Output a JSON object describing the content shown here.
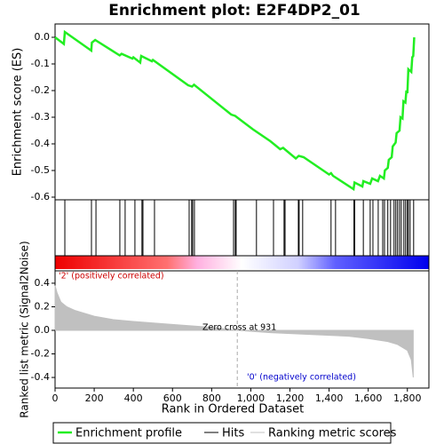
{
  "chart_data": [
    {
      "type": "line",
      "title": "Enrichment plot: E2F4DP2_01",
      "ylabel": "Enrichment score (ES)",
      "xlim": [
        0,
        1910
      ],
      "ylim": [
        -0.61,
        0.05
      ],
      "yticks": [
        {
          "value": 0,
          "label": "0.0"
        },
        -0.1,
        -0.2,
        -0.3,
        -0.4,
        -0.5,
        -0.6
      ],
      "series": [
        {
          "name": "Enrichment profile",
          "color": "#22ee22",
          "x": [
            0,
            45,
            50,
            185,
            188,
            205,
            330,
            340,
            395,
            400,
            435,
            440,
            495,
            500,
            680,
            700,
            710,
            900,
            920,
            1010,
            1100,
            1150,
            1165,
            1230,
            1245,
            1270,
            1390,
            1400,
            1410,
            1420,
            1525,
            1530,
            1570,
            1575,
            1610,
            1620,
            1650,
            1660,
            1680,
            1685,
            1700,
            1705,
            1720,
            1725,
            1740,
            1745,
            1760,
            1765,
            1775,
            1780,
            1790,
            1795,
            1800,
            1805,
            1820,
            1825,
            1830,
            1835
          ],
          "values": [
            0,
            -0.025,
            0.02,
            -0.05,
            -0.02,
            -0.01,
            -0.068,
            -0.062,
            -0.08,
            -0.075,
            -0.095,
            -0.07,
            -0.09,
            -0.085,
            -0.18,
            -0.185,
            -0.178,
            -0.29,
            -0.295,
            -0.345,
            -0.39,
            -0.42,
            -0.415,
            -0.455,
            -0.445,
            -0.45,
            -0.51,
            -0.515,
            -0.51,
            -0.52,
            -0.57,
            -0.545,
            -0.56,
            -0.54,
            -0.55,
            -0.53,
            -0.54,
            -0.52,
            -0.53,
            -0.5,
            -0.49,
            -0.46,
            -0.45,
            -0.41,
            -0.395,
            -0.36,
            -0.35,
            -0.3,
            -0.305,
            -0.24,
            -0.245,
            -0.2,
            -0.21,
            -0.12,
            -0.13,
            -0.075,
            -0.07,
            0.0
          ]
        }
      ]
    },
    {
      "type": "hits",
      "xlim": [
        0,
        1910
      ],
      "series": [
        {
          "name": "Hits",
          "color": "#000000",
          "x": [
            50,
            186,
            209,
            331,
            358,
            408,
            444,
            449,
            508,
            685,
            698,
            703,
            712,
            912,
            921,
            925,
            1029,
            1116,
            1170,
            1175,
            1243,
            1247,
            1265,
            1410,
            1433,
            1527,
            1531,
            1575,
            1610,
            1624,
            1651,
            1674,
            1683,
            1700,
            1714,
            1732,
            1741,
            1750,
            1760,
            1769,
            1782,
            1791,
            1800,
            1805,
            1814,
            1832
          ]
        }
      ]
    },
    {
      "type": "area",
      "xlabel": "Rank in Ordered Dataset",
      "ylabel": "Ranked list metric (Signal2Noise)",
      "xlim": [
        0,
        1910
      ],
      "ylim": [
        -0.49,
        0.505
      ],
      "xticks": [
        0,
        200,
        400,
        600,
        800,
        {
          "value": 1000,
          "label": "1,000"
        },
        {
          "value": 1200,
          "label": "1,200"
        },
        {
          "value": 1400,
          "label": "1,400"
        },
        {
          "value": 1600,
          "label": "1,600"
        },
        {
          "value": 1800,
          "label": "1,800"
        }
      ],
      "yticks": [
        0.4,
        0.2,
        {
          "value": 0,
          "label": "0.0"
        },
        -0.2,
        -0.4
      ],
      "annotations": [
        {
          "text": "'2' (positively correlated)",
          "color": "#cc0000"
        },
        {
          "text": "Zero cross at 931",
          "color": "#000000"
        },
        {
          "text": "'0' (negatively correlated)",
          "color": "#0000cc"
        }
      ],
      "series": [
        {
          "name": "Ranking metric scores",
          "color": "#c0c0c0",
          "x": [
            0,
            10,
            30,
            60,
            100,
            200,
            300,
            400,
            600,
            800,
            931,
            1100,
            1300,
            1500,
            1600,
            1700,
            1750,
            1800,
            1820,
            1830
          ],
          "values": [
            0.38,
            0.32,
            0.24,
            0.2,
            0.17,
            0.12,
            0.09,
            0.075,
            0.05,
            0.025,
            0,
            -0.02,
            -0.035,
            -0.05,
            -0.07,
            -0.095,
            -0.12,
            -0.17,
            -0.25,
            -0.4
          ]
        }
      ]
    }
  ]
}
